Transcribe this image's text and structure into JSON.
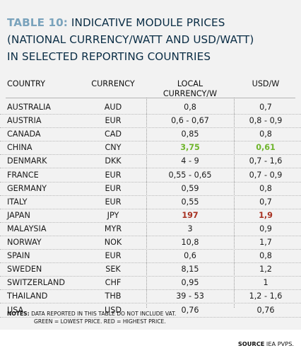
{
  "title": {
    "number": "TABLE 10:",
    "line1": "INDICATIVE MODULE PRICES",
    "line2": "(NATIONAL CURRENCY/WATT AND USD/WATT)",
    "line3": "IN SELECTED REPORTING COUNTRIES"
  },
  "headers": {
    "country": "COUNTRY",
    "currency": "CURRENCY",
    "local_line1": "LOCAL",
    "local_line2": "CURRENCY/W",
    "usd": "USD/W"
  },
  "rows": [
    {
      "country": "AUSTRALIA",
      "currency": "AUD",
      "local": "0,8",
      "usd": "0,7"
    },
    {
      "country": "AUSTRIA",
      "currency": "EUR",
      "local": "0,6 - 0,67",
      "usd": "0,8 - 0,9"
    },
    {
      "country": "CANADA",
      "currency": "CAD",
      "local": "0,85",
      "usd": "0,8"
    },
    {
      "country": "CHINA",
      "currency": "CNY",
      "local": "3,75",
      "usd": "0,61",
      "highlight": "lowest"
    },
    {
      "country": "DENMARK",
      "currency": "DKK",
      "local": "4 - 9",
      "usd": "0,7 - 1,6"
    },
    {
      "country": "FRANCE",
      "currency": "EUR",
      "local": "0,55 - 0,65",
      "usd": "0,7 - 0,9"
    },
    {
      "country": "GERMANY",
      "currency": "EUR",
      "local": "0,59",
      "usd": "0,8"
    },
    {
      "country": "ITALY",
      "currency": "EUR",
      "local": "0,55",
      "usd": "0,7"
    },
    {
      "country": "JAPAN",
      "currency": "JPY",
      "local": "197",
      "usd": "1,9",
      "highlight": "highest"
    },
    {
      "country": "MALAYSIA",
      "currency": "MYR",
      "local": "3",
      "usd": "0,9"
    },
    {
      "country": "NORWAY",
      "currency": "NOK",
      "local": "10,8",
      "usd": "1,7"
    },
    {
      "country": "SPAIN",
      "currency": "EUR",
      "local": "0,6",
      "usd": "0,8"
    },
    {
      "country": "SWEDEN",
      "currency": "SEK",
      "local": "8,15",
      "usd": "1,2"
    },
    {
      "country": "SWITZERLAND",
      "currency": "CHF",
      "local": "0,95",
      "usd": "1"
    },
    {
      "country": "THAILAND",
      "currency": "THB",
      "local": "39 - 53",
      "usd": "1,2 - 1,6"
    },
    {
      "country": "USA",
      "currency": "USD",
      "local": "0,76",
      "usd": "0,76"
    }
  ],
  "notes": {
    "label": "NOTES:",
    "line1": "DATA REPORTED IN THIS TABLE DO NOT INCLUDE VAT.",
    "line2": "GREEN = LOWEST PRICE. RED = HIGHEST PRICE."
  },
  "source": {
    "label": "SOURCE",
    "value": "IEA PVPS."
  },
  "colors": {
    "lowest": "#6fb52c",
    "highest": "#a83222",
    "title_number": "#7aa3bc",
    "title_text": "#0a2d45",
    "panel": "#f2f2f2"
  }
}
